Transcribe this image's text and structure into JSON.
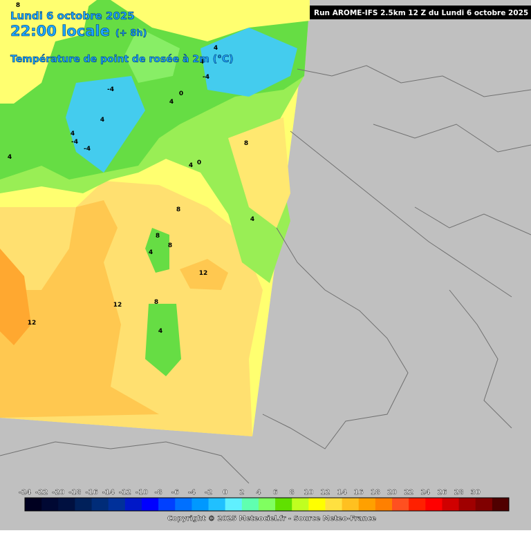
{
  "header": {
    "date": "Lundi 6 octobre 2025",
    "time": "22:00 locale",
    "offset": "(+ 8h)",
    "variable": "Température de point de rosée à 2m (°C)"
  },
  "run_info": "Run AROME-IFS 2.5km 12 Z du Lundi 6 octobre 2025",
  "map": {
    "contour_labels": [
      "8",
      "4",
      "-4",
      "4",
      "-4",
      "4",
      "-4",
      "4",
      "0",
      "-4",
      "4",
      "8",
      "4",
      "0",
      "8",
      "4",
      "8",
      "8",
      "4",
      "12",
      "12",
      "12",
      "8",
      "4",
      "4"
    ]
  },
  "colorbar": {
    "labels": [
      -24,
      -22,
      -20,
      -18,
      -16,
      -14,
      -12,
      -10,
      -8,
      -6,
      -4,
      -2,
      0,
      2,
      4,
      6,
      8,
      10,
      12,
      14,
      16,
      18,
      20,
      22,
      24,
      26,
      28,
      30
    ],
    "colors": [
      "#000020",
      "#000833",
      "#001040",
      "#00205a",
      "#002c78",
      "#00309a",
      "#0018c8",
      "#0000ff",
      "#0040ff",
      "#0070ff",
      "#0098ff",
      "#20c0ff",
      "#60f0ff",
      "#60ffb0",
      "#80ff60",
      "#60e000",
      "#c0ff20",
      "#ffff00",
      "#ffe040",
      "#ffc020",
      "#ffa000",
      "#ff8000",
      "#ff5020",
      "#ff2000",
      "#ff0000",
      "#d00000",
      "#a00000",
      "#800000",
      "#500000"
    ]
  },
  "copyright": "Copyright © 2025 Meteociel.fr - Source Meteo-France"
}
